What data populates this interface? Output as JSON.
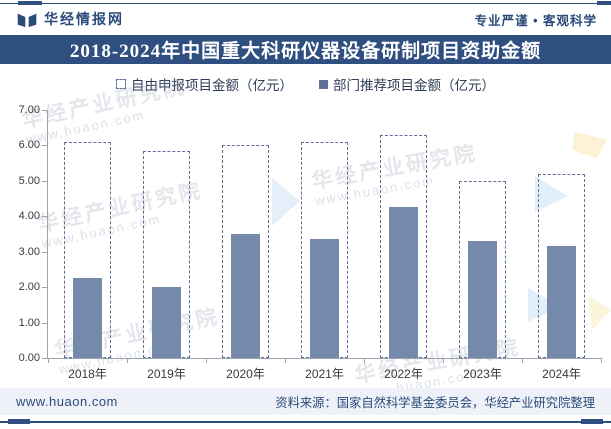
{
  "header": {
    "brand": "华经情报网",
    "slogan": "专业严谨 • 客观科学"
  },
  "chart_data": {
    "type": "bar",
    "title": "2018-2024年中国重大科研仪器设备研制项目资助金额",
    "categories": [
      "2018年",
      "2019年",
      "2020年",
      "2021年",
      "2022年",
      "2023年",
      "2024年"
    ],
    "series": [
      {
        "name": "自由申报项目金额（亿元）",
        "style": "dashed-outline",
        "values": [
          6.1,
          5.85,
          6.0,
          6.1,
          6.3,
          5.0,
          5.2
        ]
      },
      {
        "name": "部门推荐项目金额（亿元）",
        "style": "solid",
        "values": [
          2.25,
          2.0,
          3.5,
          3.35,
          4.25,
          3.3,
          3.15
        ]
      }
    ],
    "ylim": [
      0,
      7
    ],
    "ytick_step": 1,
    "ytick_labels": [
      "0.00",
      "1.00",
      "2.00",
      "3.00",
      "4.00",
      "5.00",
      "6.00",
      "7.00"
    ],
    "grid": false,
    "legend_position": "top"
  },
  "watermark": {
    "brand": "华经产业研究院",
    "url": "www.huaon.com"
  },
  "footer": {
    "site": "www.huaon.com",
    "source": "资料来源：国家自然科学基金委员会，华经产业研究院整理"
  },
  "colors": {
    "navy": "#2f4f80",
    "brand_text": "#2b4a7a",
    "bar_fill": "#7589ab",
    "bar_outline": "#5d6f94",
    "legend_marker": "#5f7097",
    "legend_text": "#2e3c55",
    "axis_line": "#9aa3ae",
    "tick_text": "#3a3a3a",
    "footer_bg": "#eef2f8",
    "watermark_blue": "#cfe2f6",
    "watermark_yellow": "#fbecbe"
  }
}
